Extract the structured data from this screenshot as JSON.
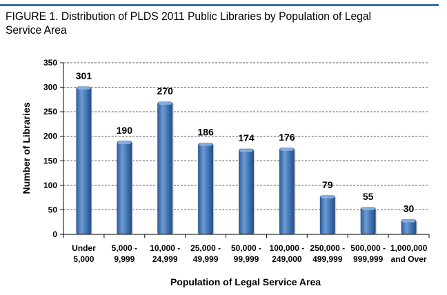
{
  "figure": {
    "title": "FIGURE 1. Distribution of PLDS 2011 Public Libraries by Population of Legal Service Area"
  },
  "colors": {
    "accent_bar": "#3a6fa8",
    "bar_fill": "#4a7ebd",
    "bar_dark": "#2a5590",
    "gridline": "#555555"
  },
  "chart_data": {
    "type": "bar",
    "title": "FIGURE 1. Distribution of PLDS 2011 Public Libraries by Population of Legal Service Area",
    "xlabel": "Population of Legal Service Area",
    "ylabel": "Number of Libraries",
    "ylim": [
      0,
      350
    ],
    "yticks": [
      0,
      50,
      100,
      150,
      200,
      250,
      300,
      350
    ],
    "grid": true,
    "categories": [
      [
        "Under",
        "5,000"
      ],
      [
        "5,000 -",
        "9,999"
      ],
      [
        "10,000 -",
        "24,999"
      ],
      [
        "25,000 -",
        "49,999"
      ],
      [
        "50,000 -",
        "99,999"
      ],
      [
        "100,000 -",
        "249,000"
      ],
      [
        "250,000 -",
        "499,999"
      ],
      [
        "500,000 -",
        "999,999"
      ],
      [
        "1,000,000",
        "and Over"
      ]
    ],
    "values": [
      301,
      190,
      270,
      186,
      174,
      176,
      79,
      55,
      30
    ]
  }
}
